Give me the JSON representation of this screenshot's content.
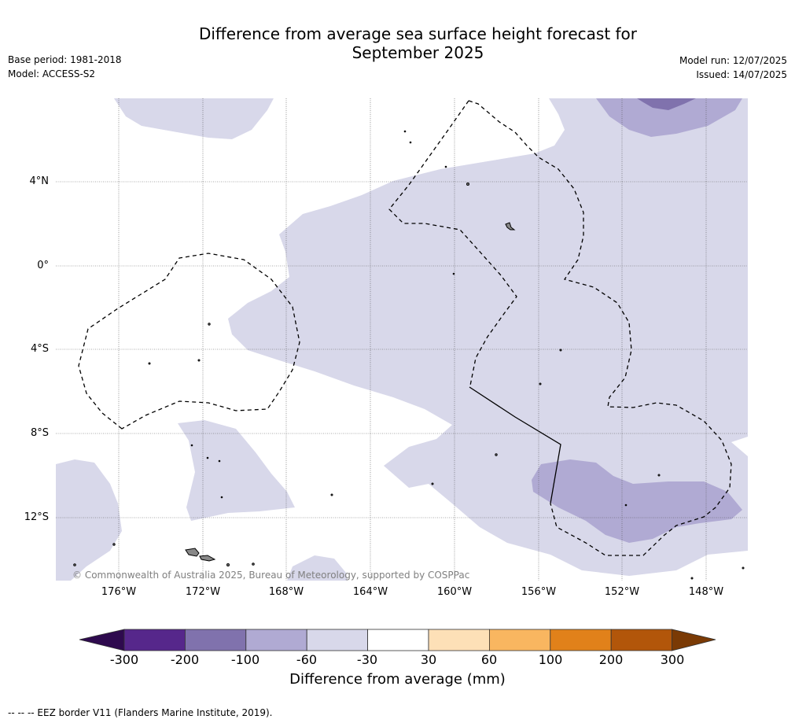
{
  "title_line1": "Difference from average sea surface height forecast for",
  "title_line2": "September 2025",
  "base_period": "Base period: 1981-2018",
  "model": "Model: ACCESS-S2",
  "model_run": "Model run: 12/07/2025",
  "issued": "Issued: 14/07/2025",
  "lat_labels": [
    "4°N",
    "0°",
    "4°S",
    "8°S",
    "12°S"
  ],
  "lon_labels": [
    "176°W",
    "172°W",
    "168°W",
    "164°W",
    "160°W",
    "156°W",
    "152°W",
    "148°W"
  ],
  "copyright": "© Commonwealth of Australia 2025, Bureau of Meteorology, supported by COSPPac",
  "colorbar": {
    "ticks": [
      "-300",
      "-200",
      "-100",
      "-60",
      "-30",
      "30",
      "60",
      "100",
      "200",
      "300"
    ],
    "colors": [
      "#2e0a4e",
      "#56278b",
      "#8072ad",
      "#b0aad3",
      "#d8d8ea",
      "#ffffff",
      "#fde0b7",
      "#f9b660",
      "#e1811a",
      "#b2560a",
      "#7a3a05"
    ],
    "label": "Difference from average (mm)"
  },
  "footnote": "--  --  -- EEZ border V11 (Flanders Marine Institute, 2019).",
  "map_colors": {
    "light": "#d8d8ea",
    "medium": "#b0aad3",
    "dark": "#8072ad"
  }
}
